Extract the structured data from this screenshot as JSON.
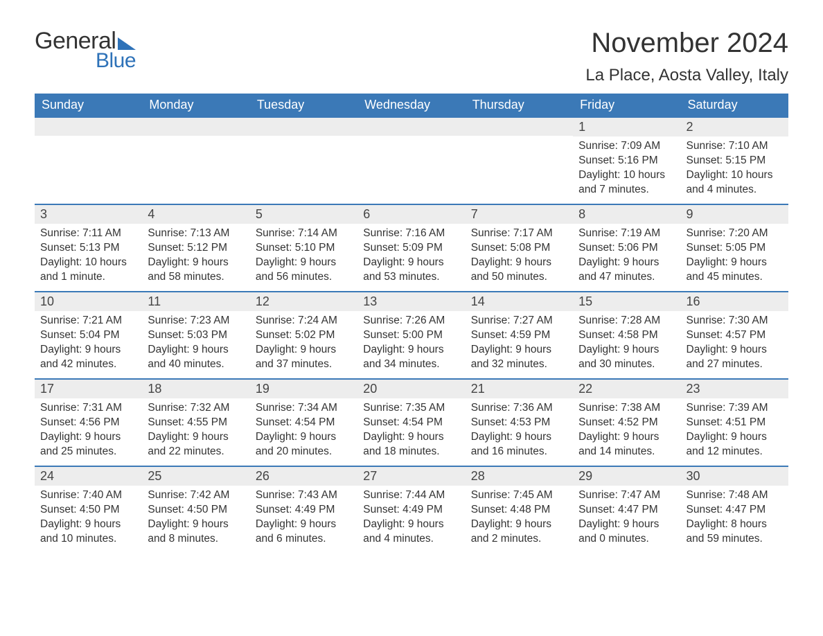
{
  "brand": {
    "word1": "General",
    "word2": "Blue",
    "accent_color": "#2e72b8"
  },
  "title": "November 2024",
  "location": "La Place, Aosta Valley, Italy",
  "colors": {
    "header_bg": "#3b79b7",
    "header_text": "#ffffff",
    "daynum_bg": "#ededed",
    "daynum_border": "#3b79b7",
    "body_text": "#333333",
    "page_bg": "#ffffff"
  },
  "typography": {
    "title_fontsize_pt": 30,
    "location_fontsize_pt": 18,
    "weekday_fontsize_pt": 14,
    "daynum_fontsize_pt": 14,
    "body_fontsize_pt": 12,
    "font_family": "Arial"
  },
  "calendar": {
    "type": "table",
    "weekdays": [
      "Sunday",
      "Monday",
      "Tuesday",
      "Wednesday",
      "Thursday",
      "Friday",
      "Saturday"
    ],
    "leading_blanks": 5,
    "days": [
      {
        "n": 1,
        "sunrise": "7:09 AM",
        "sunset": "5:16 PM",
        "daylight": "10 hours and 7 minutes."
      },
      {
        "n": 2,
        "sunrise": "7:10 AM",
        "sunset": "5:15 PM",
        "daylight": "10 hours and 4 minutes."
      },
      {
        "n": 3,
        "sunrise": "7:11 AM",
        "sunset": "5:13 PM",
        "daylight": "10 hours and 1 minute."
      },
      {
        "n": 4,
        "sunrise": "7:13 AM",
        "sunset": "5:12 PM",
        "daylight": "9 hours and 58 minutes."
      },
      {
        "n": 5,
        "sunrise": "7:14 AM",
        "sunset": "5:10 PM",
        "daylight": "9 hours and 56 minutes."
      },
      {
        "n": 6,
        "sunrise": "7:16 AM",
        "sunset": "5:09 PM",
        "daylight": "9 hours and 53 minutes."
      },
      {
        "n": 7,
        "sunrise": "7:17 AM",
        "sunset": "5:08 PM",
        "daylight": "9 hours and 50 minutes."
      },
      {
        "n": 8,
        "sunrise": "7:19 AM",
        "sunset": "5:06 PM",
        "daylight": "9 hours and 47 minutes."
      },
      {
        "n": 9,
        "sunrise": "7:20 AM",
        "sunset": "5:05 PM",
        "daylight": "9 hours and 45 minutes."
      },
      {
        "n": 10,
        "sunrise": "7:21 AM",
        "sunset": "5:04 PM",
        "daylight": "9 hours and 42 minutes."
      },
      {
        "n": 11,
        "sunrise": "7:23 AM",
        "sunset": "5:03 PM",
        "daylight": "9 hours and 40 minutes."
      },
      {
        "n": 12,
        "sunrise": "7:24 AM",
        "sunset": "5:02 PM",
        "daylight": "9 hours and 37 minutes."
      },
      {
        "n": 13,
        "sunrise": "7:26 AM",
        "sunset": "5:00 PM",
        "daylight": "9 hours and 34 minutes."
      },
      {
        "n": 14,
        "sunrise": "7:27 AM",
        "sunset": "4:59 PM",
        "daylight": "9 hours and 32 minutes."
      },
      {
        "n": 15,
        "sunrise": "7:28 AM",
        "sunset": "4:58 PM",
        "daylight": "9 hours and 30 minutes."
      },
      {
        "n": 16,
        "sunrise": "7:30 AM",
        "sunset": "4:57 PM",
        "daylight": "9 hours and 27 minutes."
      },
      {
        "n": 17,
        "sunrise": "7:31 AM",
        "sunset": "4:56 PM",
        "daylight": "9 hours and 25 minutes."
      },
      {
        "n": 18,
        "sunrise": "7:32 AM",
        "sunset": "4:55 PM",
        "daylight": "9 hours and 22 minutes."
      },
      {
        "n": 19,
        "sunrise": "7:34 AM",
        "sunset": "4:54 PM",
        "daylight": "9 hours and 20 minutes."
      },
      {
        "n": 20,
        "sunrise": "7:35 AM",
        "sunset": "4:54 PM",
        "daylight": "9 hours and 18 minutes."
      },
      {
        "n": 21,
        "sunrise": "7:36 AM",
        "sunset": "4:53 PM",
        "daylight": "9 hours and 16 minutes."
      },
      {
        "n": 22,
        "sunrise": "7:38 AM",
        "sunset": "4:52 PM",
        "daylight": "9 hours and 14 minutes."
      },
      {
        "n": 23,
        "sunrise": "7:39 AM",
        "sunset": "4:51 PM",
        "daylight": "9 hours and 12 minutes."
      },
      {
        "n": 24,
        "sunrise": "7:40 AM",
        "sunset": "4:50 PM",
        "daylight": "9 hours and 10 minutes."
      },
      {
        "n": 25,
        "sunrise": "7:42 AM",
        "sunset": "4:50 PM",
        "daylight": "9 hours and 8 minutes."
      },
      {
        "n": 26,
        "sunrise": "7:43 AM",
        "sunset": "4:49 PM",
        "daylight": "9 hours and 6 minutes."
      },
      {
        "n": 27,
        "sunrise": "7:44 AM",
        "sunset": "4:49 PM",
        "daylight": "9 hours and 4 minutes."
      },
      {
        "n": 28,
        "sunrise": "7:45 AM",
        "sunset": "4:48 PM",
        "daylight": "9 hours and 2 minutes."
      },
      {
        "n": 29,
        "sunrise": "7:47 AM",
        "sunset": "4:47 PM",
        "daylight": "9 hours and 0 minutes."
      },
      {
        "n": 30,
        "sunrise": "7:48 AM",
        "sunset": "4:47 PM",
        "daylight": "8 hours and 59 minutes."
      }
    ],
    "labels": {
      "sunrise": "Sunrise:",
      "sunset": "Sunset:",
      "daylight": "Daylight:"
    }
  }
}
